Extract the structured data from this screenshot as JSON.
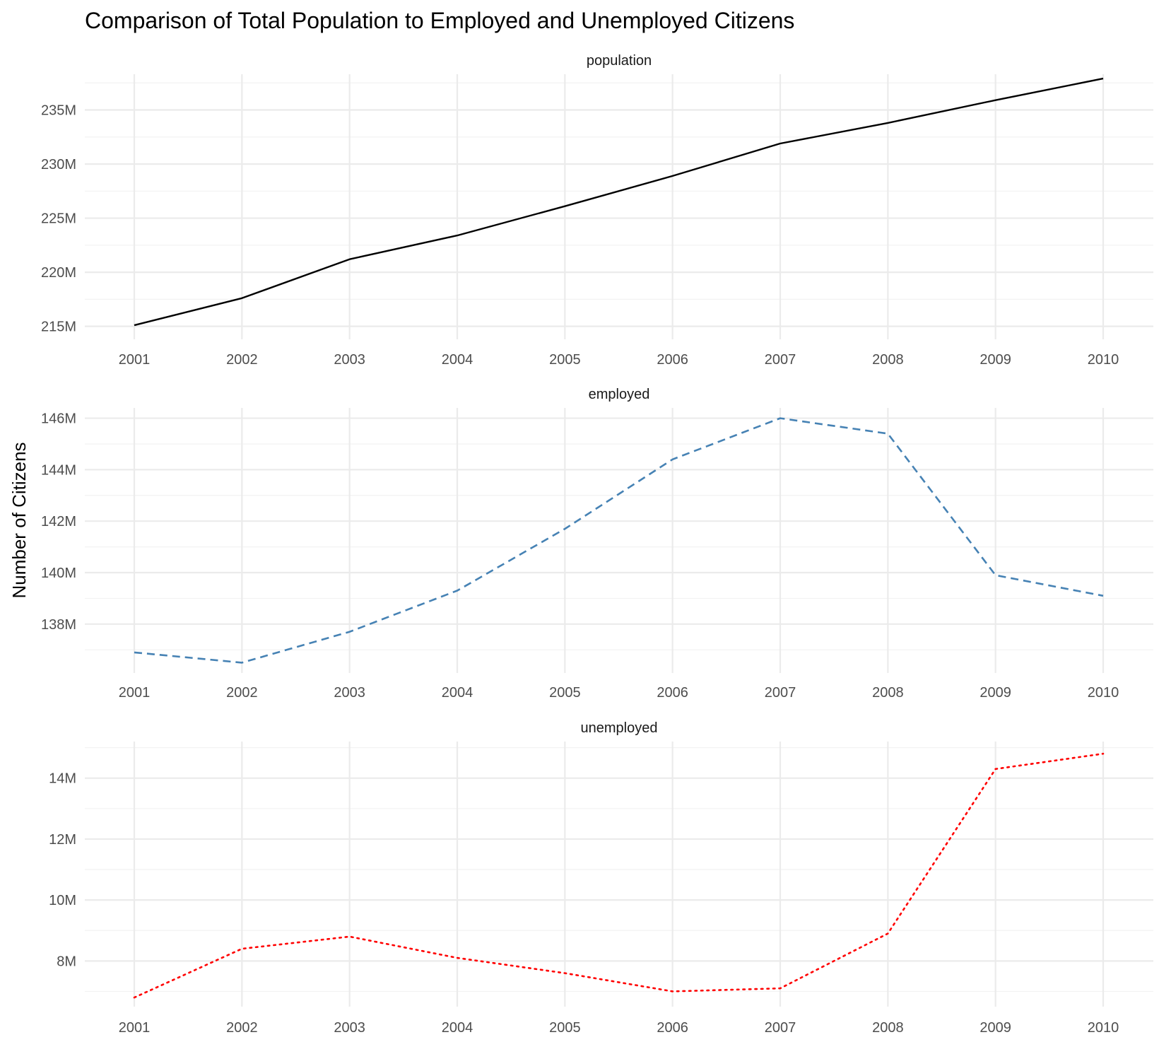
{
  "chart_data": {
    "type": "line",
    "title": "Comparison of Total Population to Employed and Unemployed Citizens",
    "xlabel": "",
    "ylabel": "Number of Citizens",
    "grid": true,
    "legend": "none",
    "x": [
      2001,
      2002,
      2003,
      2004,
      2005,
      2006,
      2007,
      2008,
      2009,
      2010
    ],
    "x_tick_labels": [
      "2001",
      "2002",
      "2003",
      "2004",
      "2005",
      "2006",
      "2007",
      "2008",
      "2009",
      "2010"
    ],
    "panels": [
      {
        "name": "population",
        "color": "#000000",
        "line_style": "solid",
        "ylim": [
          213800000,
          238300000
        ],
        "y_ticks": [
          215000000,
          220000000,
          225000000,
          230000000,
          235000000
        ],
        "y_tick_labels": [
          "215M",
          "220M",
          "225M",
          "230M",
          "235M"
        ],
        "y_minor": [
          217500000,
          222500000,
          227500000,
          232500000,
          237500000
        ],
        "values": [
          215100000,
          217600000,
          221200000,
          223400000,
          226100000,
          228900000,
          231900000,
          233800000,
          235900000,
          237900000
        ]
      },
      {
        "name": "employed",
        "color": "#4682B4",
        "line_style": "dashed",
        "ylim": [
          136100000,
          146400000
        ],
        "y_ticks": [
          138000000,
          140000000,
          142000000,
          144000000,
          146000000
        ],
        "y_tick_labels": [
          "138M",
          "140M",
          "142M",
          "144M",
          "146M"
        ],
        "y_minor": [
          137000000,
          139000000,
          141000000,
          143000000,
          145000000
        ],
        "values": [
          136900000,
          136500000,
          137700000,
          139300000,
          141700000,
          144400000,
          146000000,
          145400000,
          139900000,
          139100000
        ]
      },
      {
        "name": "unemployed",
        "color": "#FF0000",
        "line_style": "dotted",
        "ylim": [
          6500000,
          15200000
        ],
        "y_ticks": [
          8000000,
          10000000,
          12000000,
          14000000
        ],
        "y_tick_labels": [
          "8M",
          "10M",
          "12M",
          "14M"
        ],
        "y_minor": [
          7000000,
          9000000,
          11000000,
          13000000,
          15000000
        ],
        "values": [
          6800000,
          8400000,
          8800000,
          8100000,
          7600000,
          7000000,
          7100000,
          8900000,
          14300000,
          14800000
        ]
      }
    ]
  }
}
